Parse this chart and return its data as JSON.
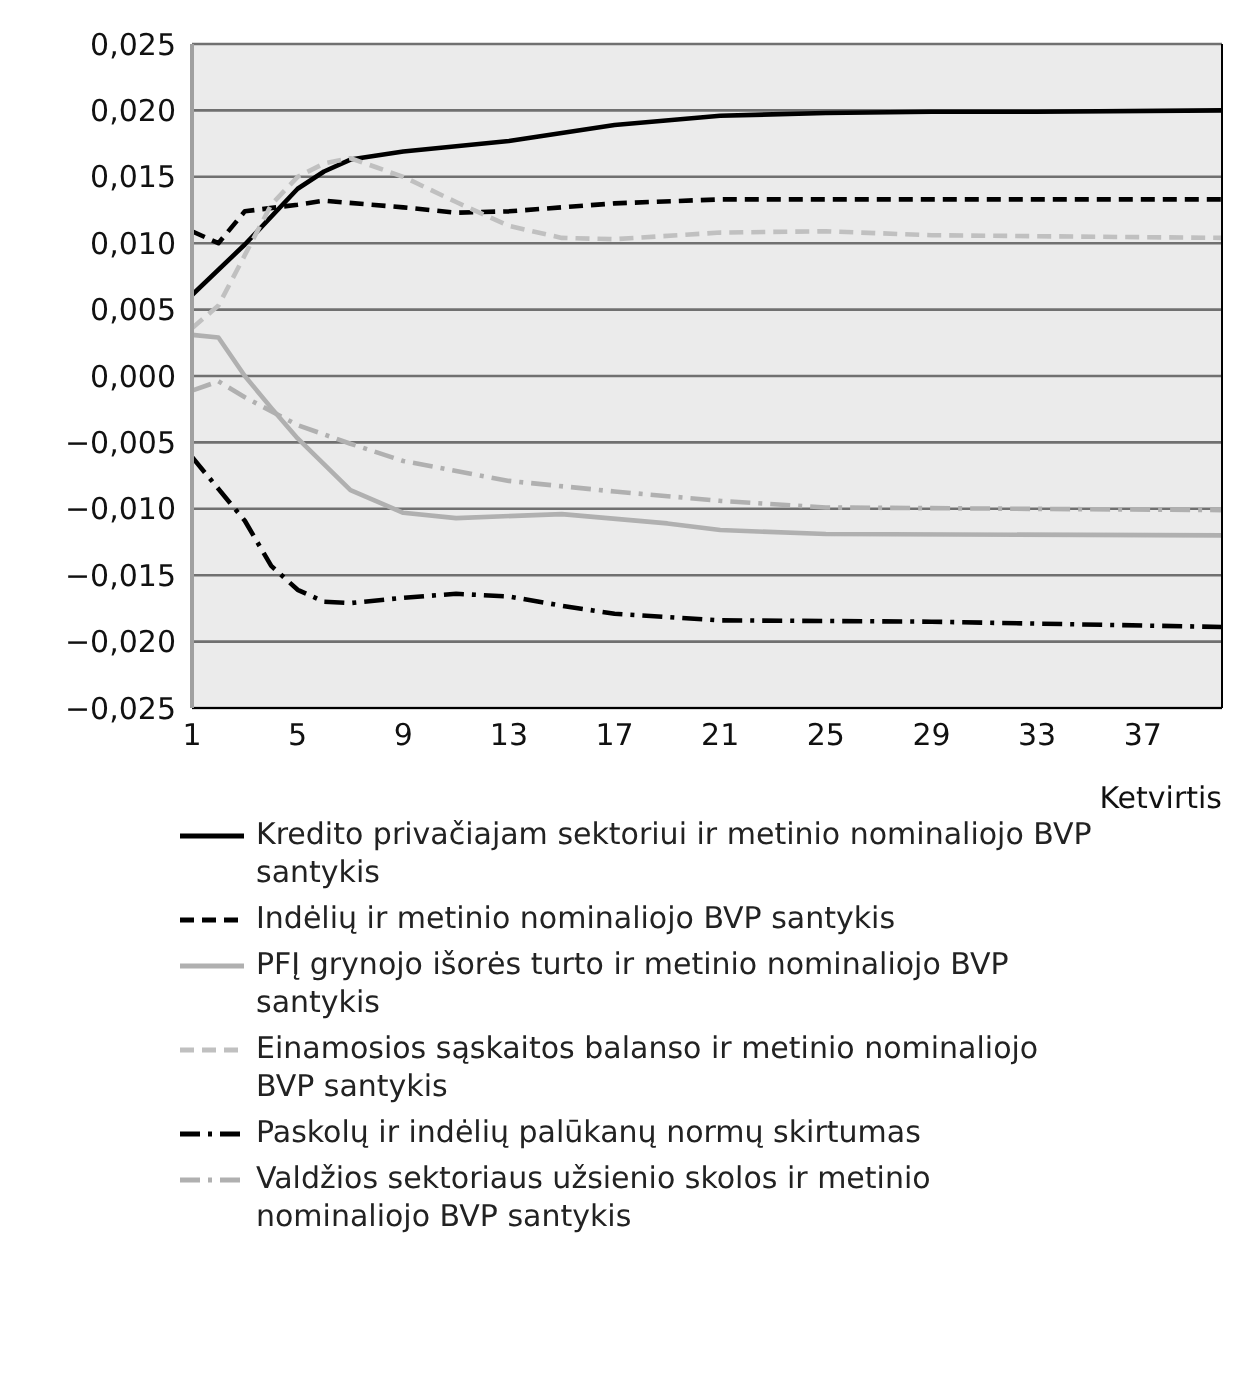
{
  "chart_data": {
    "type": "line",
    "xlabel": "Ketvirtis",
    "xlim": [
      1,
      40
    ],
    "xticks": [
      1,
      5,
      9,
      13,
      17,
      21,
      25,
      29,
      33,
      37
    ],
    "ylim": [
      -0.025,
      0.025
    ],
    "yticks": [
      {
        "value": -0.025,
        "label": "−0,025"
      },
      {
        "value": -0.02,
        "label": "−0,020"
      },
      {
        "value": -0.015,
        "label": "−0,015"
      },
      {
        "value": -0.01,
        "label": "−0,010"
      },
      {
        "value": -0.005,
        "label": "−0,005"
      },
      {
        "value": 0,
        "label": "0,000"
      },
      {
        "value": 0.005,
        "label": "0,005"
      },
      {
        "value": 0.01,
        "label": "0,010"
      },
      {
        "value": 0.015,
        "label": "0,015"
      },
      {
        "value": 0.02,
        "label": "0,020"
      },
      {
        "value": 0.025,
        "label": "0,025"
      }
    ],
    "grid": "y",
    "legend": "bottom",
    "marker": "none",
    "series": [
      {
        "name": "Kredito privačiajam sektoriui ir metinio nominaliojo BVP santykis",
        "color": "#000000",
        "line_style": "solid",
        "x": [
          1,
          3,
          5,
          6,
          7,
          9,
          13,
          17,
          21,
          25,
          29,
          33,
          40
        ],
        "values": [
          0.0061,
          0.0099,
          0.0141,
          0.0154,
          0.0163,
          0.0169,
          0.0177,
          0.0189,
          0.0196,
          0.0198,
          0.0199,
          0.0199,
          0.02
        ]
      },
      {
        "name": "Indėlių ir metinio nominaliojo  BVP santykis",
        "color": "#000000",
        "line_style": "dashed",
        "x": [
          1,
          2,
          3,
          5,
          6,
          9,
          11,
          13,
          17,
          21,
          29,
          40
        ],
        "values": [
          0.0109,
          0.01,
          0.0124,
          0.0129,
          0.0132,
          0.0127,
          0.0123,
          0.0124,
          0.013,
          0.0133,
          0.0133,
          0.0133
        ]
      },
      {
        "name": "PFĮ grynojo išorės turto ir metinio nominaliojo BVP santykis",
        "color": "#b0b0b0",
        "line_style": "solid",
        "x": [
          1,
          2,
          3,
          4,
          5,
          7,
          9,
          11,
          15,
          19,
          21,
          25,
          40
        ],
        "values": [
          0.0031,
          0.0029,
          0.0,
          -0.0024,
          -0.0047,
          -0.0086,
          -0.0103,
          -0.0107,
          -0.0104,
          -0.0111,
          -0.0116,
          -0.0119,
          -0.012
        ]
      },
      {
        "name": "Einamosios sąskaitos balanso ir metinio nominaliojo BVP santykis",
        "color": "#c0c0c0",
        "line_style": "dashed",
        "x": [
          1,
          2,
          3,
          4,
          5,
          6,
          7,
          8,
          9,
          11,
          13,
          15,
          17,
          21,
          25,
          29,
          40
        ],
        "values": [
          0.0036,
          0.0053,
          0.0091,
          0.0129,
          0.015,
          0.016,
          0.0164,
          0.0157,
          0.015,
          0.0131,
          0.0113,
          0.0104,
          0.0103,
          0.0108,
          0.0109,
          0.0106,
          0.0104
        ]
      },
      {
        "name": "Paskolų ir indėlių palūkanų normų skirtumas",
        "color": "#000000",
        "line_style": "dashdot",
        "x": [
          1,
          3,
          4,
          5,
          6,
          7,
          9,
          11,
          13,
          15,
          17,
          21,
          29,
          40
        ],
        "values": [
          -0.0061,
          -0.0109,
          -0.0143,
          -0.0161,
          -0.017,
          -0.0171,
          -0.0167,
          -0.0164,
          -0.0166,
          -0.0173,
          -0.0179,
          -0.0184,
          -0.0185,
          -0.0189
        ]
      },
      {
        "name": "Valdžios sektoriaus užsienio skolos ir metinio nominaliojo BVP santykis",
        "color": "#b0b0b0",
        "line_style": "dashdot",
        "x": [
          1,
          2,
          3,
          5,
          7,
          9,
          13,
          17,
          21,
          25,
          40
        ],
        "values": [
          -0.0011,
          -0.0004,
          -0.0016,
          -0.0037,
          -0.0051,
          -0.0064,
          -0.0079,
          -0.0087,
          -0.0094,
          -0.0099,
          -0.0101
        ]
      }
    ]
  }
}
